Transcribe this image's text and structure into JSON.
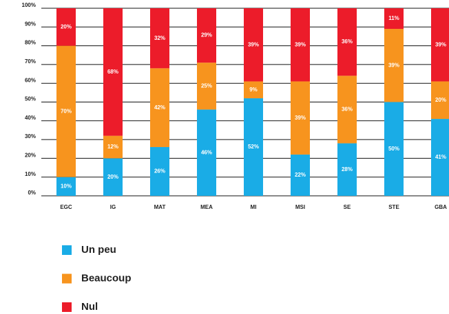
{
  "chart_data": {
    "type": "stacked_bar",
    "categories": [
      "EGC",
      "IG",
      "MAT",
      "MEA",
      "MI",
      "MSI",
      "SE",
      "STE",
      "GBA"
    ],
    "series": [
      {
        "name": "Un peu",
        "color": "#1aace6",
        "values": [
          10,
          20,
          26,
          46,
          52,
          22,
          28,
          50,
          41
        ],
        "value_labels": [
          "10%",
          "20%",
          "26%",
          "46%",
          "52%",
          "22%",
          "28%",
          "50%",
          "41%"
        ]
      },
      {
        "name": "Beaucoup",
        "color": "#f7941e",
        "values": [
          70,
          12,
          42,
          25,
          9,
          39,
          36,
          39,
          20
        ],
        "value_labels": [
          "70%",
          "12%",
          "42%",
          "25%",
          "9%",
          "39%",
          "36%",
          "39%",
          "20%"
        ]
      },
      {
        "name": "Nul",
        "color": "#ec1c2a",
        "values": [
          20,
          68,
          32,
          29,
          39,
          39,
          36,
          11,
          39
        ],
        "value_labels": [
          "20%",
          "68%",
          "32%",
          "29%",
          "39%",
          "39%",
          "36%",
          "11%",
          "39%"
        ]
      }
    ],
    "ylim": [
      0,
      100
    ],
    "yticks": [
      {
        "value": 0,
        "label": "0%"
      },
      {
        "value": 10,
        "label": "10%"
      },
      {
        "value": 20,
        "label": "20%"
      },
      {
        "value": 30,
        "label": "30%"
      },
      {
        "value": 40,
        "label": "40%"
      },
      {
        "value": 50,
        "label": "50%"
      },
      {
        "value": 60,
        "label": "60%"
      },
      {
        "value": 70,
        "label": "70%"
      },
      {
        "value": 80,
        "label": "80%"
      },
      {
        "value": 90,
        "label": "90%"
      },
      {
        "value": 100,
        "label": "100%"
      }
    ],
    "grid": true
  }
}
